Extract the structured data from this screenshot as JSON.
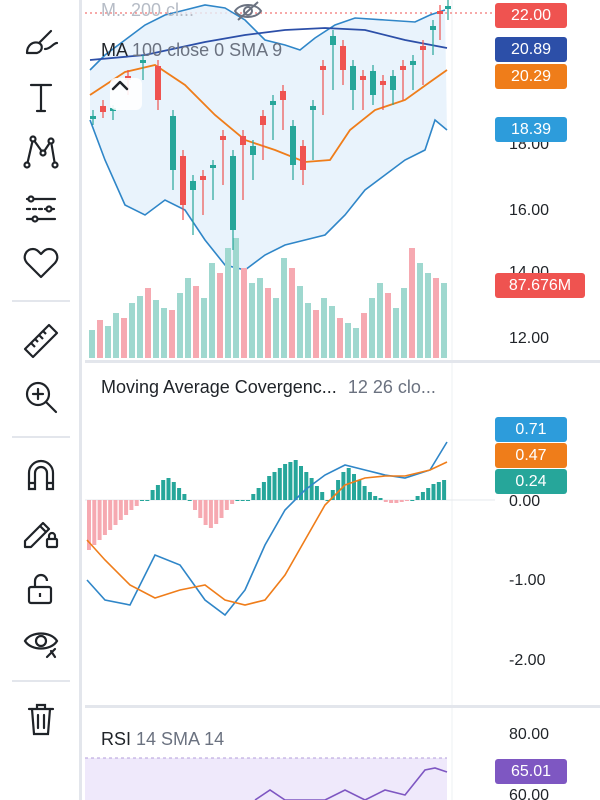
{
  "toolbar": {
    "tools": [
      {
        "name": "brush-tool",
        "icon": "brush-icon"
      },
      {
        "name": "text-tool",
        "icon": "text-icon"
      },
      {
        "name": "pattern-tool",
        "icon": "pattern-icon"
      },
      {
        "name": "prediction-tool",
        "icon": "prediction-icon"
      },
      {
        "name": "favorites-tool",
        "icon": "heart-icon"
      },
      {
        "name": "measure-tool",
        "icon": "ruler-icon"
      },
      {
        "name": "zoom-tool",
        "icon": "zoom-in-icon"
      },
      {
        "name": "magnet-tool",
        "icon": "magnet-icon"
      },
      {
        "name": "lock-drawing-tool",
        "icon": "pencil-lock-icon"
      },
      {
        "name": "lock-all-tool",
        "icon": "unlock-icon"
      },
      {
        "name": "hide-tool",
        "icon": "eye-icon"
      },
      {
        "name": "delete-tool",
        "icon": "trash-icon"
      }
    ]
  },
  "main_pane": {
    "indicator_top": "M.. 200 cl...",
    "ma_name": "MA",
    "ma_params": "100 close 0 SMA 9",
    "price_axis": [
      "16.00",
      "12.00"
    ],
    "price_axis_partial": [
      "18.00",
      "14.00"
    ],
    "tags": {
      "last_price": "22.00",
      "ma_value": "20.89",
      "ma2_value": "20.29",
      "bb_lower": "18.39",
      "volume": "87.676M"
    },
    "colors": {
      "up": "#26a69a",
      "down": "#ef5350",
      "vol_up": "#9fd8cf",
      "vol_down": "#f6a9b1",
      "bb": "#2f86c8",
      "ma_blue": "#2c4fa8",
      "ma_orange": "#ef7d1a"
    }
  },
  "macd_pane": {
    "title": "Moving Average Covergenc...",
    "params": "12 26 clo...",
    "axis": [
      "0.00",
      "-1.00",
      "-2.00"
    ],
    "tags": {
      "macd": "0.71",
      "signal": "0.47",
      "histogram": "0.24"
    },
    "colors": {
      "macd": "#2f86c8",
      "signal": "#ef7d1a",
      "hist_up": "#26a69a",
      "hist_down": "#ef5350"
    }
  },
  "rsi_pane": {
    "title": "RSI",
    "params": "14 SMA 14",
    "axis": [
      "80.00",
      "60.00"
    ],
    "tags": {
      "rsi": "65.01"
    },
    "colors": {
      "rsi": "#7e57c2",
      "band": "#efe9fb"
    }
  }
}
